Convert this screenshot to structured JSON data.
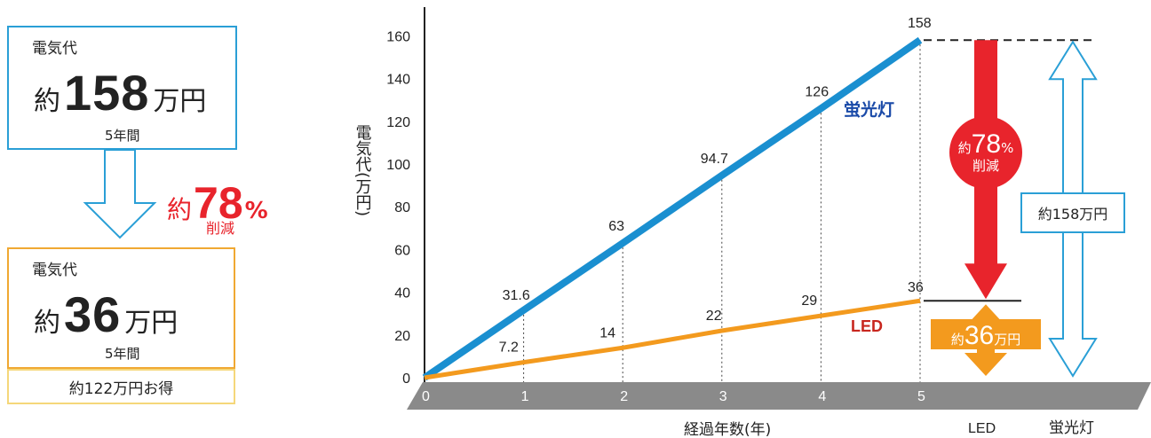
{
  "left": {
    "top_box": {
      "label": "電気代",
      "prefix": "約",
      "amount": "158",
      "unit": "万円",
      "period": "5年間"
    },
    "reduction": {
      "prefix": "約",
      "value": "78",
      "unit": "%",
      "label": "削減"
    },
    "bottom_box": {
      "label": "電気代",
      "prefix": "約",
      "amount": "36",
      "unit": "万円",
      "period": "5年間"
    },
    "savings": "約122万円お得"
  },
  "chart_data": {
    "type": "line",
    "xlabel": "経過年数(年)",
    "ylabel": "電気代(万円)",
    "x": [
      0,
      1,
      2,
      3,
      4,
      5
    ],
    "ylim": [
      0,
      160
    ],
    "yticks": [
      0,
      20,
      40,
      60,
      80,
      100,
      120,
      140,
      160
    ],
    "series": [
      {
        "name": "蛍光灯",
        "color": "#1a8fd0",
        "values": [
          0,
          31.6,
          63,
          94.7,
          126,
          158
        ],
        "labels": [
          "",
          "31.6",
          "63",
          "94.7",
          "126",
          "158"
        ]
      },
      {
        "name": "LED",
        "color": "#f39a1e",
        "values": [
          0,
          7.2,
          14,
          22,
          29,
          36
        ],
        "labels": [
          "",
          "7.2",
          "14",
          "22",
          "29",
          "36"
        ]
      }
    ],
    "bar_labels": [
      "LED",
      "蛍光灯"
    ],
    "annotations": {
      "reduction": {
        "prefix": "約",
        "value": "78",
        "unit": "%",
        "label": "削減"
      },
      "led_total": {
        "prefix": "約",
        "value": "36",
        "unit": "万円"
      },
      "fl_total": {
        "text": "約158万円"
      }
    }
  }
}
